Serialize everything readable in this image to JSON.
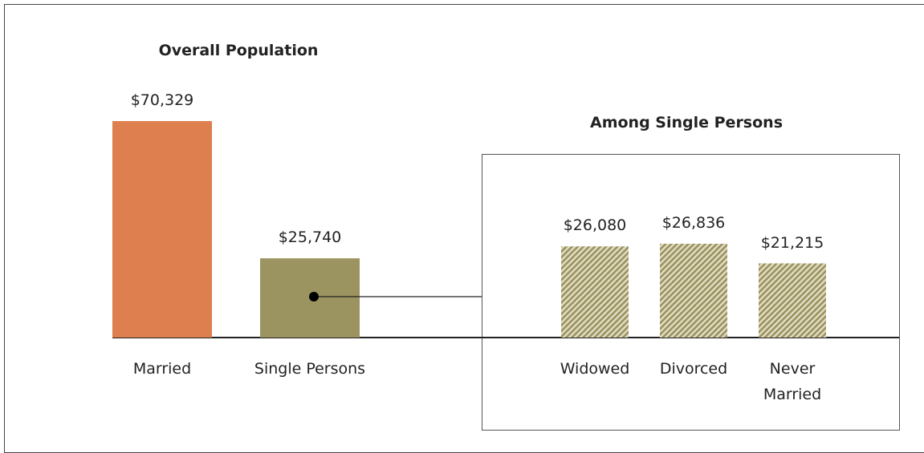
{
  "chart_data": [
    {
      "type": "bar",
      "title": "Overall Population",
      "categories": [
        "Married",
        "Single Persons"
      ],
      "values": [
        70329,
        25740
      ],
      "value_labels": [
        "$70,329",
        "$25,740"
      ],
      "colors": [
        "#dd7f4f",
        "#9c9460"
      ]
    },
    {
      "type": "bar",
      "title": "Among Single Persons",
      "categories": [
        "Widowed",
        "Divorced",
        "Never Married"
      ],
      "values": [
        26080,
        26836,
        21215
      ],
      "value_labels": [
        "$26,080",
        "$26,836",
        "$21,215"
      ],
      "color": "#9c9460",
      "hatch": true
    }
  ]
}
